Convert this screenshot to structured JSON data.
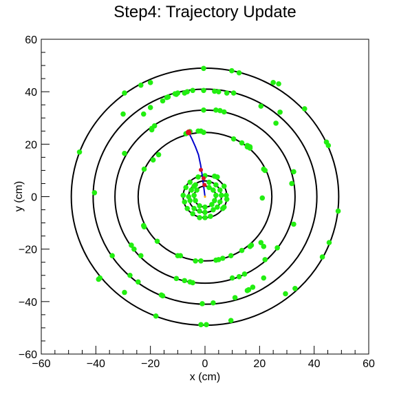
{
  "chart_data": {
    "type": "scatter",
    "title": "Step4: Trajectory Update",
    "xlabel": "x (cm)",
    "ylabel": "y (cm)",
    "xlim": [
      -60,
      60
    ],
    "ylim": [
      -60,
      60
    ],
    "x_ticks": [
      -60,
      -40,
      -20,
      0,
      20,
      40,
      60
    ],
    "y_ticks": [
      -60,
      -40,
      -20,
      0,
      20,
      40,
      60
    ],
    "x_tick_labels": [
      "−60",
      "−40",
      "−20",
      "0",
      "20",
      "40",
      "60"
    ],
    "y_tick_labels": [
      "−60",
      "−40",
      "−20",
      "0",
      "20",
      "40",
      "60"
    ],
    "grid": false,
    "legend": "none",
    "colors": {
      "rings": "#000000",
      "hits": "#22ee11",
      "track": "#0000cc",
      "update_points": "#dd1122",
      "origin": "#ffaa00"
    },
    "detector_layers_r": [
      4,
      6,
      8,
      24.5,
      33,
      41,
      49
    ],
    "hits": [
      [
        -0.5,
        48.9
      ],
      [
        9.8,
        48
      ],
      [
        12.5,
        47.2
      ],
      [
        25,
        43.5
      ],
      [
        27,
        43
      ],
      [
        36.5,
        33.5
      ],
      [
        44.5,
        20.8
      ],
      [
        45.2,
        19.5
      ],
      [
        48.8,
        -5.5
      ],
      [
        45.5,
        -17.5
      ],
      [
        43,
        -23
      ],
      [
        33,
        -35
      ],
      [
        29.5,
        -37
      ],
      [
        9.5,
        -47.2
      ],
      [
        0.5,
        -48.8
      ],
      [
        -1.5,
        -48.8
      ],
      [
        -18,
        -45.5
      ],
      [
        -29.5,
        -36.5
      ],
      [
        -39,
        -31.5
      ],
      [
        -46,
        17
      ],
      [
        -40.5,
        1.5
      ],
      [
        -29.5,
        39.5
      ],
      [
        -23.5,
        42.5
      ],
      [
        -20,
        43.5
      ],
      [
        -30,
        31.5
      ],
      [
        -0.5,
        40.5
      ],
      [
        -6.5,
        40
      ],
      [
        -7.5,
        39.5
      ],
      [
        -13.5,
        38
      ],
      [
        -14,
        37.8
      ],
      [
        -10.5,
        39
      ],
      [
        3.5,
        40.2
      ],
      [
        5,
        40
      ],
      [
        8,
        39.5
      ],
      [
        20.5,
        34.5
      ],
      [
        26,
        28
      ],
      [
        32.5,
        9.5
      ],
      [
        31.8,
        5
      ],
      [
        32.5,
        -10.5
      ],
      [
        21.5,
        -31
      ],
      [
        17.5,
        -34.5
      ],
      [
        16,
        -35.5
      ],
      [
        15.5,
        -35.8
      ],
      [
        11,
        -38.5
      ],
      [
        3,
        -40.5
      ],
      [
        -1,
        -40.8
      ],
      [
        -16,
        -37.5
      ],
      [
        -15.5,
        -37.8
      ],
      [
        -24.5,
        -32.5
      ],
      [
        -27.5,
        -30
      ],
      [
        -34,
        -22.5
      ],
      [
        -29.5,
        16.5
      ],
      [
        -22.5,
        31.5
      ],
      [
        -20,
        34
      ],
      [
        -15.5,
        36.5
      ],
      [
        -4.5,
        40.5
      ],
      [
        -11,
        39.2
      ],
      [
        -10,
        39.5
      ],
      [
        -0.5,
        33
      ],
      [
        4,
        33
      ],
      [
        5.5,
        32.8
      ],
      [
        7,
        32.3
      ],
      [
        -19.5,
        26
      ],
      [
        -18.5,
        27
      ],
      [
        -19.5,
        25.5
      ],
      [
        -27,
        -18.5
      ],
      [
        -26,
        -20
      ],
      [
        -23.5,
        -22.5
      ],
      [
        -10.5,
        -31.2
      ],
      [
        -7.5,
        -32
      ],
      [
        -5.5,
        -32.5
      ],
      [
        -4.5,
        -32.8
      ],
      [
        10,
        -31
      ],
      [
        12.5,
        -30.5
      ],
      [
        14.5,
        -29.5
      ],
      [
        22,
        -24
      ],
      [
        26.5,
        -19.5
      ],
      [
        21.5,
        -19
      ],
      [
        -6,
        24.5
      ],
      [
        -7,
        24
      ],
      [
        -5.5,
        24.8
      ],
      [
        -2.5,
        25
      ],
      [
        -1.5,
        25
      ],
      [
        10.5,
        22
      ],
      [
        13.5,
        20.5
      ],
      [
        15.5,
        19.5
      ],
      [
        16.5,
        19
      ],
      [
        16.5,
        18.5
      ],
      [
        15.5,
        19
      ],
      [
        16,
        19.2
      ],
      [
        21.5,
        10.5
      ],
      [
        22,
        10
      ],
      [
        21,
        -0.5
      ],
      [
        20.5,
        -17.5
      ],
      [
        17,
        -18.5
      ],
      [
        16.5,
        -19
      ],
      [
        13.5,
        -20.5
      ],
      [
        9.5,
        -22.5
      ],
      [
        6.5,
        -23.5
      ],
      [
        5,
        -24
      ],
      [
        4,
        -24.2
      ],
      [
        -1.5,
        -24.5
      ],
      [
        -9,
        -22.5
      ],
      [
        -10,
        -22.5
      ],
      [
        -17.5,
        -17
      ],
      [
        -22.5,
        -11
      ],
      [
        -22.3,
        -11.5
      ],
      [
        -22.3,
        10.5
      ],
      [
        -19,
        14
      ],
      [
        -17,
        16
      ],
      [
        -0.5,
        24.5
      ],
      [
        -2.5,
        7.5
      ],
      [
        0,
        8
      ],
      [
        3.5,
        7.8
      ],
      [
        4.5,
        7.5
      ],
      [
        7,
        4
      ],
      [
        7.8,
        0.5
      ],
      [
        8,
        -1
      ],
      [
        7,
        -4
      ],
      [
        6.5,
        -4.5
      ],
      [
        2,
        -7.5
      ],
      [
        0,
        -8
      ],
      [
        -2,
        -8
      ],
      [
        -4.5,
        -6.5
      ],
      [
        -6.5,
        -4.5
      ],
      [
        -7.5,
        -2
      ],
      [
        -8,
        0.5
      ],
      [
        -7,
        3.5
      ],
      [
        -5.5,
        5.5
      ],
      [
        -4,
        4
      ],
      [
        -3.5,
        4.5
      ],
      [
        -5,
        2.5
      ],
      [
        -6,
        0
      ],
      [
        -5.5,
        -1.5
      ],
      [
        -4,
        -4.5
      ],
      [
        -2,
        -5.5
      ],
      [
        0,
        -6
      ],
      [
        3,
        -5
      ],
      [
        4.5,
        -4
      ],
      [
        5.5,
        -2
      ],
      [
        6,
        0.5
      ],
      [
        5.5,
        2.5
      ],
      [
        4,
        4.5
      ],
      [
        1.5,
        5.5
      ],
      [
        -3,
        2.5
      ],
      [
        -4,
        0.5
      ],
      [
        -3.5,
        -1.5
      ],
      [
        -2,
        -3.5
      ],
      [
        0,
        -4
      ],
      [
        2.5,
        -3
      ],
      [
        3.5,
        -1.5
      ],
      [
        4,
        0.5
      ],
      [
        3,
        2.5
      ],
      [
        1.5,
        3.5
      ],
      [
        10.5,
        39.5
      ],
      [
        27.5,
        32.2
      ],
      [
        -38.5,
        -31
      ],
      [
        -3.5,
        -24.5
      ]
    ],
    "track": [
      [
        0,
        0
      ],
      [
        -0.5,
        4
      ],
      [
        -1.0,
        8
      ],
      [
        -1.6,
        12
      ],
      [
        -2.4,
        16
      ],
      [
        -3.5,
        19
      ],
      [
        -4.8,
        22
      ],
      [
        -6,
        24.5
      ]
    ],
    "update_points": [
      [
        -6,
        24.5
      ],
      [
        -1.5,
        10.2
      ],
      [
        -0.5,
        7
      ],
      [
        -0.2,
        4.5
      ]
    ],
    "origin": [
      0,
      0
    ]
  }
}
